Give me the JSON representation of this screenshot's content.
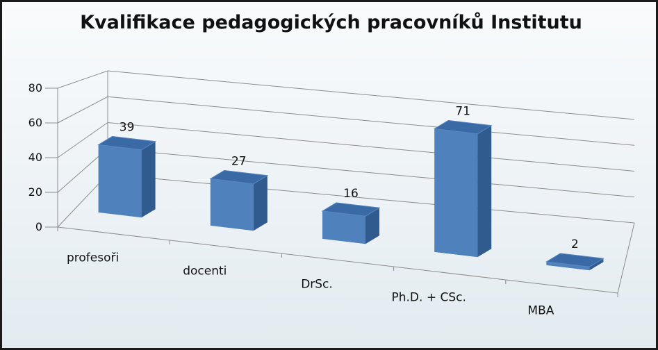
{
  "chart_data": {
    "type": "bar",
    "title": "Kvalifikace pedagogických pracovníků Institutu",
    "categories": [
      "profesoři",
      "docenti",
      "DrSc.",
      "Ph.D. + CSc.",
      "MBA"
    ],
    "values": [
      39,
      27,
      16,
      71,
      2
    ],
    "data_labels": [
      "39",
      "27",
      "16",
      "71",
      "2"
    ],
    "y_ticks": [
      "0",
      "20",
      "40",
      "60",
      "80"
    ],
    "ylim": [
      0,
      80
    ],
    "grid": true,
    "legend": "none",
    "style": "3d-column",
    "colors": {
      "bar_front": "#4f81bd",
      "bar_side": "#2f5b8f",
      "bar_top": "#3a6aa6",
      "gridline": "#8c8c8c"
    }
  }
}
